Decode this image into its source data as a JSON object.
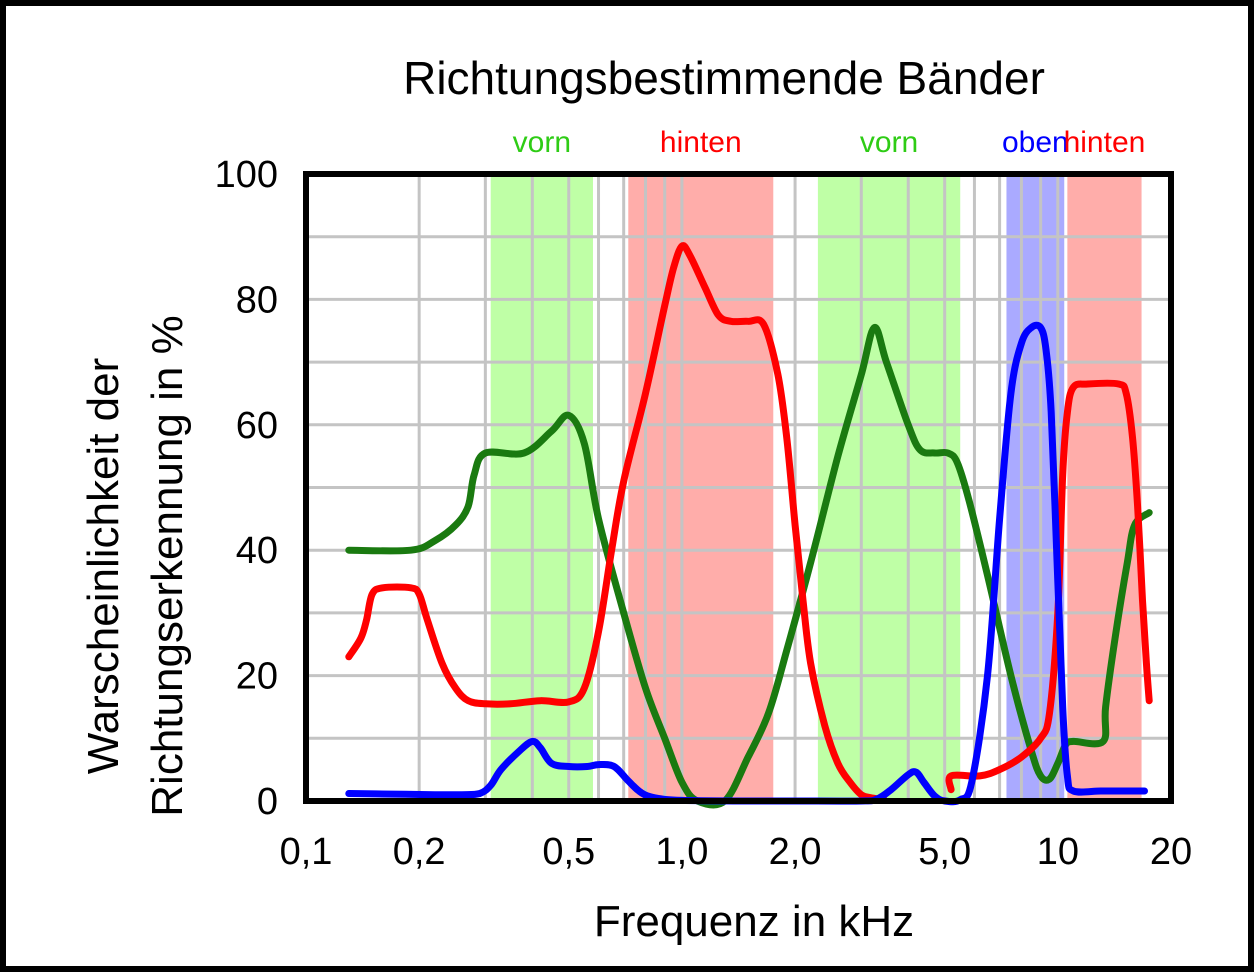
{
  "chart_data": {
    "type": "line",
    "title": "Richtungsbestimmende Bänder",
    "xlabel": "Frequenz in kHz",
    "ylabel_lines": [
      "Warscheinlichkeit der",
      "Richtungserkennung in %"
    ],
    "xscale": "log",
    "xlim": [
      0.1,
      20
    ],
    "ylim": [
      0,
      100
    ],
    "grid": true,
    "y_ticks": [
      {
        "value": 0,
        "label": "0"
      },
      {
        "value": 20,
        "label": "20"
      },
      {
        "value": 40,
        "label": "40"
      },
      {
        "value": 60,
        "label": "60"
      },
      {
        "value": 80,
        "label": "80"
      },
      {
        "value": 100,
        "label": "100"
      }
    ],
    "x_ticks": [
      {
        "value": 0.1,
        "label": "0,1"
      },
      {
        "value": 0.2,
        "label": "0,2"
      },
      {
        "value": 0.5,
        "label": "0,5"
      },
      {
        "value": 1.0,
        "label": "1,0"
      },
      {
        "value": 2.0,
        "label": "2,0"
      },
      {
        "value": 5.0,
        "label": "5,0"
      },
      {
        "value": 10,
        "label": "10"
      },
      {
        "value": 20,
        "label": "20"
      }
    ],
    "bands": [
      {
        "label": "vorn",
        "from": 0.31,
        "to": 0.58,
        "color": "#bfffa6",
        "label_color": "#2ecc15"
      },
      {
        "label": "hinten",
        "from": 0.72,
        "to": 1.75,
        "color": "#ffadaa",
        "label_color": "#ff0000"
      },
      {
        "label": "vorn",
        "from": 2.3,
        "to": 5.5,
        "color": "#bfffa6",
        "label_color": "#2ecc15"
      },
      {
        "label": "oben",
        "from": 7.3,
        "to": 10.4,
        "color": "#aaaaff",
        "label_color": "#0000ff"
      },
      {
        "label": "hinten",
        "from": 10.6,
        "to": 16.7,
        "color": "#ffadaa",
        "label_color": "#ff0000"
      }
    ],
    "series": [
      {
        "color": "#1a7a10",
        "points": [
          [
            0.13,
            40
          ],
          [
            0.19,
            40
          ],
          [
            0.22,
            41.5
          ],
          [
            0.25,
            44
          ],
          [
            0.27,
            47
          ],
          [
            0.28,
            52
          ],
          [
            0.3,
            55.5
          ],
          [
            0.38,
            55.5
          ],
          [
            0.45,
            59
          ],
          [
            0.5,
            61.5
          ],
          [
            0.55,
            57
          ],
          [
            0.6,
            45
          ],
          [
            0.7,
            30
          ],
          [
            0.8,
            18
          ],
          [
            0.9,
            10
          ],
          [
            1.0,
            3
          ],
          [
            1.1,
            0
          ],
          [
            1.3,
            0
          ],
          [
            1.5,
            7
          ],
          [
            1.7,
            14
          ],
          [
            1.9,
            24
          ],
          [
            2.2,
            38
          ],
          [
            2.6,
            55
          ],
          [
            3.0,
            68
          ],
          [
            3.25,
            75.5
          ],
          [
            3.5,
            70
          ],
          [
            4.0,
            60
          ],
          [
            4.3,
            56
          ],
          [
            4.7,
            55.5
          ],
          [
            5.1,
            55.5
          ],
          [
            5.4,
            54
          ],
          [
            5.8,
            48
          ],
          [
            6.5,
            36
          ],
          [
            7.5,
            20
          ],
          [
            8.5,
            8
          ],
          [
            9.0,
            4
          ],
          [
            9.5,
            3.5
          ],
          [
            10.0,
            6
          ],
          [
            10.5,
            9
          ],
          [
            11.0,
            9.5
          ],
          [
            13.2,
            9.5
          ],
          [
            13.4,
            15
          ],
          [
            14.2,
            26
          ],
          [
            15.3,
            38
          ],
          [
            16.0,
            44
          ],
          [
            17.5,
            46
          ]
        ]
      },
      {
        "color": "#ff0000",
        "points": [
          [
            0.13,
            23
          ],
          [
            0.14,
            26
          ],
          [
            0.145,
            29
          ],
          [
            0.15,
            33
          ],
          [
            0.16,
            34
          ],
          [
            0.19,
            34
          ],
          [
            0.2,
            33
          ],
          [
            0.21,
            29
          ],
          [
            0.23,
            22
          ],
          [
            0.25,
            18
          ],
          [
            0.27,
            16
          ],
          [
            0.3,
            15.5
          ],
          [
            0.35,
            15.5
          ],
          [
            0.42,
            16
          ],
          [
            0.5,
            15.8
          ],
          [
            0.55,
            18
          ],
          [
            0.6,
            27
          ],
          [
            0.65,
            40
          ],
          [
            0.7,
            51
          ],
          [
            0.8,
            65
          ],
          [
            0.9,
            79
          ],
          [
            0.95,
            85
          ],
          [
            1.0,
            88.5
          ],
          [
            1.05,
            87
          ],
          [
            1.15,
            82
          ],
          [
            1.25,
            77.5
          ],
          [
            1.35,
            76.5
          ],
          [
            1.5,
            76.5
          ],
          [
            1.65,
            76
          ],
          [
            1.8,
            68
          ],
          [
            1.9,
            58
          ],
          [
            2.0,
            44
          ],
          [
            2.1,
            32
          ],
          [
            2.2,
            22
          ],
          [
            2.4,
            12
          ],
          [
            2.6,
            6
          ],
          [
            2.8,
            3
          ],
          [
            3.0,
            1
          ],
          [
            3.2,
            0.5
          ],
          [
            3.45,
            0.2
          ]
        ]
      },
      {
        "color": "#ff0000",
        "points": [
          [
            5.2,
            1.8
          ],
          [
            5.2,
            4
          ],
          [
            6.2,
            4
          ],
          [
            7.0,
            5
          ],
          [
            8.0,
            7
          ],
          [
            9.0,
            10
          ],
          [
            9.5,
            14
          ],
          [
            10.0,
            30
          ],
          [
            10.3,
            52
          ],
          [
            10.6,
            62
          ],
          [
            11.0,
            66
          ],
          [
            12.0,
            66.5
          ],
          [
            14.5,
            66.5
          ],
          [
            15.2,
            65
          ],
          [
            15.8,
            58
          ],
          [
            16.3,
            47
          ],
          [
            16.8,
            32
          ],
          [
            17.2,
            22
          ],
          [
            17.5,
            16
          ]
        ]
      },
      {
        "color": "#0000ff",
        "points": [
          [
            0.13,
            1.2
          ],
          [
            0.17,
            1.1
          ],
          [
            0.22,
            1
          ],
          [
            0.26,
            1
          ],
          [
            0.29,
            1.2
          ],
          [
            0.31,
            2.5
          ],
          [
            0.33,
            5
          ],
          [
            0.37,
            8
          ],
          [
            0.4,
            9.5
          ],
          [
            0.42,
            8.5
          ],
          [
            0.45,
            6
          ],
          [
            0.5,
            5.5
          ],
          [
            0.56,
            5.5
          ],
          [
            0.6,
            5.8
          ],
          [
            0.66,
            5.5
          ],
          [
            0.72,
            3.2
          ],
          [
            0.78,
            1.3
          ],
          [
            0.85,
            0.5
          ],
          [
            1.0,
            0.1
          ],
          [
            1.5,
            0
          ],
          [
            2.0,
            0
          ],
          [
            3.0,
            0
          ],
          [
            3.3,
            0.3
          ],
          [
            3.6,
            1.8
          ],
          [
            4.0,
            4.2
          ],
          [
            4.2,
            4.6
          ],
          [
            4.4,
            3
          ],
          [
            4.7,
            0.8
          ],
          [
            5.0,
            0
          ],
          [
            5.5,
            0.2
          ],
          [
            5.9,
            3
          ],
          [
            6.5,
            20
          ],
          [
            7.0,
            45
          ],
          [
            7.5,
            65
          ],
          [
            8.0,
            73
          ],
          [
            8.5,
            75.5
          ],
          [
            9.0,
            75.5
          ],
          [
            9.3,
            72
          ],
          [
            9.6,
            62
          ],
          [
            10.0,
            35
          ],
          [
            10.3,
            15
          ],
          [
            10.6,
            4
          ],
          [
            11.0,
            1.6
          ],
          [
            13.0,
            1.6
          ],
          [
            15.0,
            1.6
          ],
          [
            17.0,
            1.6
          ]
        ]
      }
    ]
  }
}
